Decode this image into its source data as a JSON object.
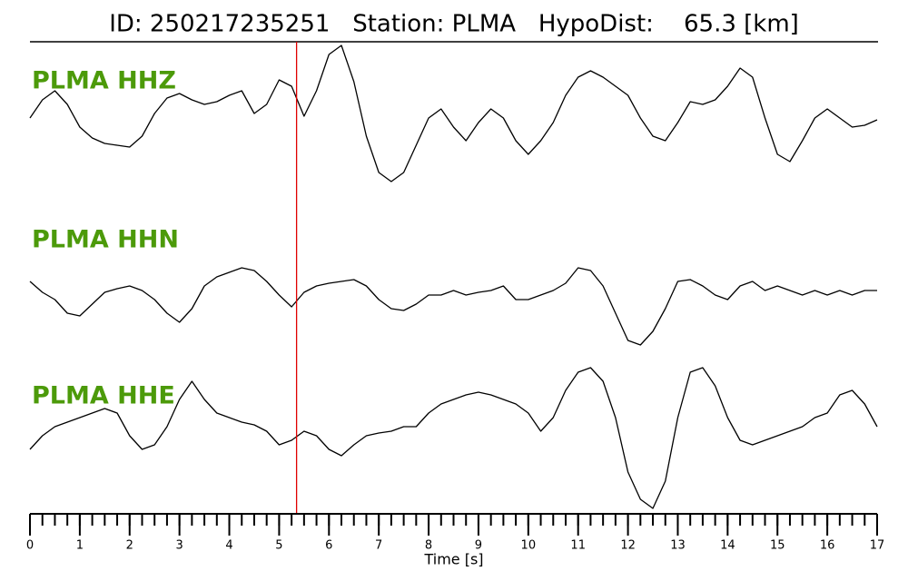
{
  "chart_data": {
    "type": "waveform",
    "title": "ID: 250217235251   Station: PLMA   HypoDist:    65.3 [km]",
    "x_label": "Time [s]",
    "label_color": "#4c9a0a",
    "x": [
      0,
      0.25,
      0.5,
      0.75,
      1,
      1.25,
      1.5,
      1.75,
      2,
      2.25,
      2.5,
      2.75,
      3,
      3.25,
      3.5,
      3.75,
      4,
      4.25,
      4.5,
      4.75,
      5,
      5.25,
      5.5,
      5.75,
      6,
      6.25,
      6.5,
      6.75,
      7,
      7.25,
      7.5,
      7.75,
      8,
      8.25,
      8.5,
      8.75,
      9,
      9.25,
      9.5,
      9.75,
      10,
      10.25,
      10.5,
      10.75,
      11,
      11.25,
      11.5,
      11.75,
      12,
      12.25,
      12.5,
      12.75,
      13,
      13.25,
      13.5,
      13.75,
      14,
      14.25,
      14.5,
      14.75,
      15,
      15.25,
      15.5,
      15.75,
      16,
      16.25,
      16.5,
      16.75,
      17
    ],
    "series": [
      {
        "name": "PLMA HHZ",
        "color": "#000000",
        "values": [
          0,
          20,
          30,
          15,
          -10,
          -22,
          -28,
          -30,
          -32,
          -20,
          5,
          22,
          27,
          20,
          15,
          18,
          25,
          30,
          5,
          15,
          42,
          35,
          2,
          30,
          70,
          80,
          40,
          -20,
          -60,
          -70,
          -60,
          -30,
          0,
          10,
          -10,
          -25,
          -5,
          10,
          0,
          -25,
          -40,
          -25,
          -5,
          25,
          45,
          52,
          45,
          35,
          25,
          0,
          -20,
          -25,
          -5,
          18,
          15,
          20,
          35,
          55,
          45,
          0,
          -40,
          -48,
          -25,
          0,
          10,
          0,
          -10,
          -8,
          -2
        ]
      },
      {
        "name": "PLMA HHN",
        "color": "#000000",
        "values": [
          10,
          -2,
          -10,
          -25,
          -28,
          -15,
          -2,
          2,
          5,
          0,
          -10,
          -25,
          -35,
          -20,
          5,
          15,
          20,
          25,
          22,
          10,
          -5,
          -18,
          -2,
          5,
          8,
          10,
          12,
          5,
          -10,
          -20,
          -22,
          -15,
          -5,
          -5,
          0,
          -5,
          -2,
          0,
          5,
          -10,
          -10,
          -5,
          0,
          8,
          25,
          22,
          5,
          -25,
          -55,
          -60,
          -45,
          -20,
          10,
          12,
          5,
          -5,
          -10,
          5,
          10,
          0,
          5,
          0,
          -5,
          0,
          -5,
          0,
          -5,
          0,
          0
        ]
      },
      {
        "name": "PLMA HHE",
        "color": "#000000",
        "values": [
          -15,
          0,
          10,
          15,
          20,
          25,
          30,
          25,
          0,
          -15,
          -10,
          10,
          40,
          60,
          40,
          25,
          20,
          15,
          12,
          5,
          -10,
          -5,
          5,
          0,
          -15,
          -22,
          -10,
          0,
          3,
          5,
          10,
          10,
          25,
          35,
          40,
          45,
          48,
          45,
          40,
          35,
          25,
          5,
          20,
          50,
          70,
          75,
          60,
          20,
          -40,
          -70,
          -80,
          -50,
          20,
          70,
          75,
          55,
          20,
          -5,
          -10,
          -5,
          0,
          5,
          10,
          20,
          25,
          45,
          50,
          35,
          10
        ]
      }
    ],
    "ylim": [
      -85,
      85
    ],
    "xlim": [
      0,
      17
    ],
    "xticks": [
      0,
      1,
      2,
      3,
      4,
      5,
      6,
      7,
      8,
      9,
      10,
      11,
      12,
      13,
      14,
      15,
      16,
      17
    ],
    "minor_tick_step": 0.25,
    "markers": [
      {
        "x": 5.35,
        "color": "#e00000"
      }
    ]
  }
}
